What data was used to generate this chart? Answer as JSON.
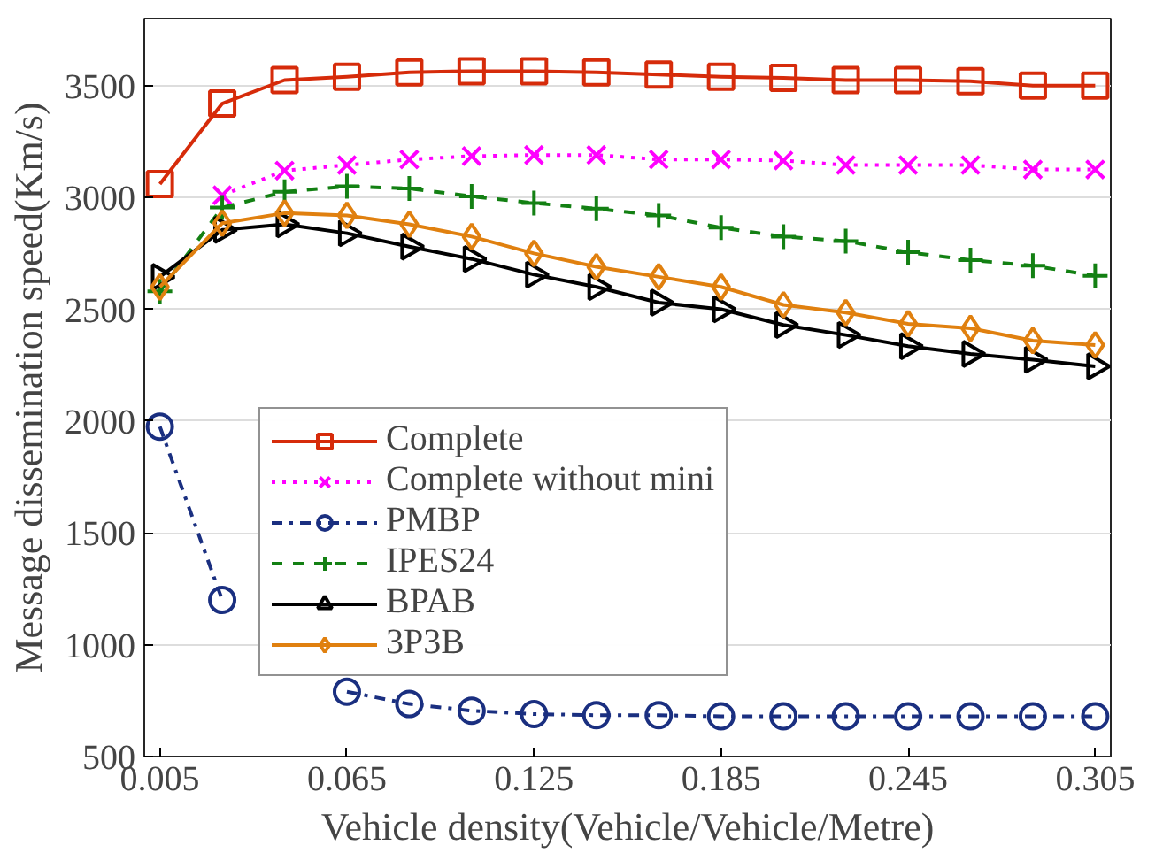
{
  "chart_data": {
    "type": "line",
    "xlabel": "Vehicle density(Vehicle/Vehicle/Metre)",
    "ylabel": "Message dissemination speed(Km/s)",
    "x": [
      0.005,
      0.025,
      0.045,
      0.065,
      0.085,
      0.105,
      0.125,
      0.145,
      0.165,
      0.185,
      0.205,
      0.225,
      0.245,
      0.265,
      0.285,
      0.305
    ],
    "xlim": [
      0,
      0.31
    ],
    "xticks": [
      0.005,
      0.065,
      0.125,
      0.185,
      0.245,
      0.305
    ],
    "ylim": [
      500,
      3800
    ],
    "yticks": [
      500,
      1000,
      1500,
      2000,
      2500,
      3000,
      3500
    ],
    "grid": "y",
    "legend": "bottom left",
    "series": [
      {
        "name": "Complete",
        "color": "#d62b0a",
        "marker": "square",
        "line_style": "solid",
        "values": [
          3060,
          3420,
          3525,
          3540,
          3560,
          3565,
          3565,
          3560,
          3550,
          3540,
          3535,
          3525,
          3525,
          3520,
          3500,
          3500
        ]
      },
      {
        "name": "Complete without mini",
        "color": "#ff00ff",
        "marker": "x",
        "line_style": "dotted",
        "values": [
          null,
          3010,
          3120,
          3145,
          3170,
          3185,
          3190,
          3190,
          3170,
          3170,
          3165,
          3145,
          3145,
          3145,
          3125,
          3125
        ]
      },
      {
        "name": "PMBP",
        "color": "#1a2f80",
        "marker": "circle",
        "line_style": "dashdot",
        "values": [
          1975,
          1200,
          null,
          790,
          735,
          705,
          690,
          685,
          685,
          680,
          680,
          680,
          680,
          680,
          680,
          680
        ]
      },
      {
        "name": "IPES24",
        "color": "#138013",
        "marker": "cross",
        "line_style": "dashed",
        "values": [
          2580,
          2955,
          3025,
          3050,
          3040,
          3005,
          2975,
          2950,
          2920,
          2865,
          2825,
          2805,
          2755,
          2720,
          2695,
          2650
        ]
      },
      {
        "name": "BPAB",
        "color": "#000000",
        "marker": "triangle",
        "line_style": "solid",
        "values": [
          2645,
          2855,
          2880,
          2840,
          2780,
          2725,
          2655,
          2600,
          2530,
          2500,
          2430,
          2385,
          2335,
          2300,
          2275,
          2245
        ]
      },
      {
        "name": "3P3B",
        "color": "#e0800f",
        "marker": "diamond",
        "line_style": "solid",
        "values": [
          2600,
          2885,
          2930,
          2920,
          2880,
          2825,
          2750,
          2690,
          2645,
          2600,
          2520,
          2485,
          2435,
          2415,
          2360,
          2340
        ]
      }
    ]
  }
}
